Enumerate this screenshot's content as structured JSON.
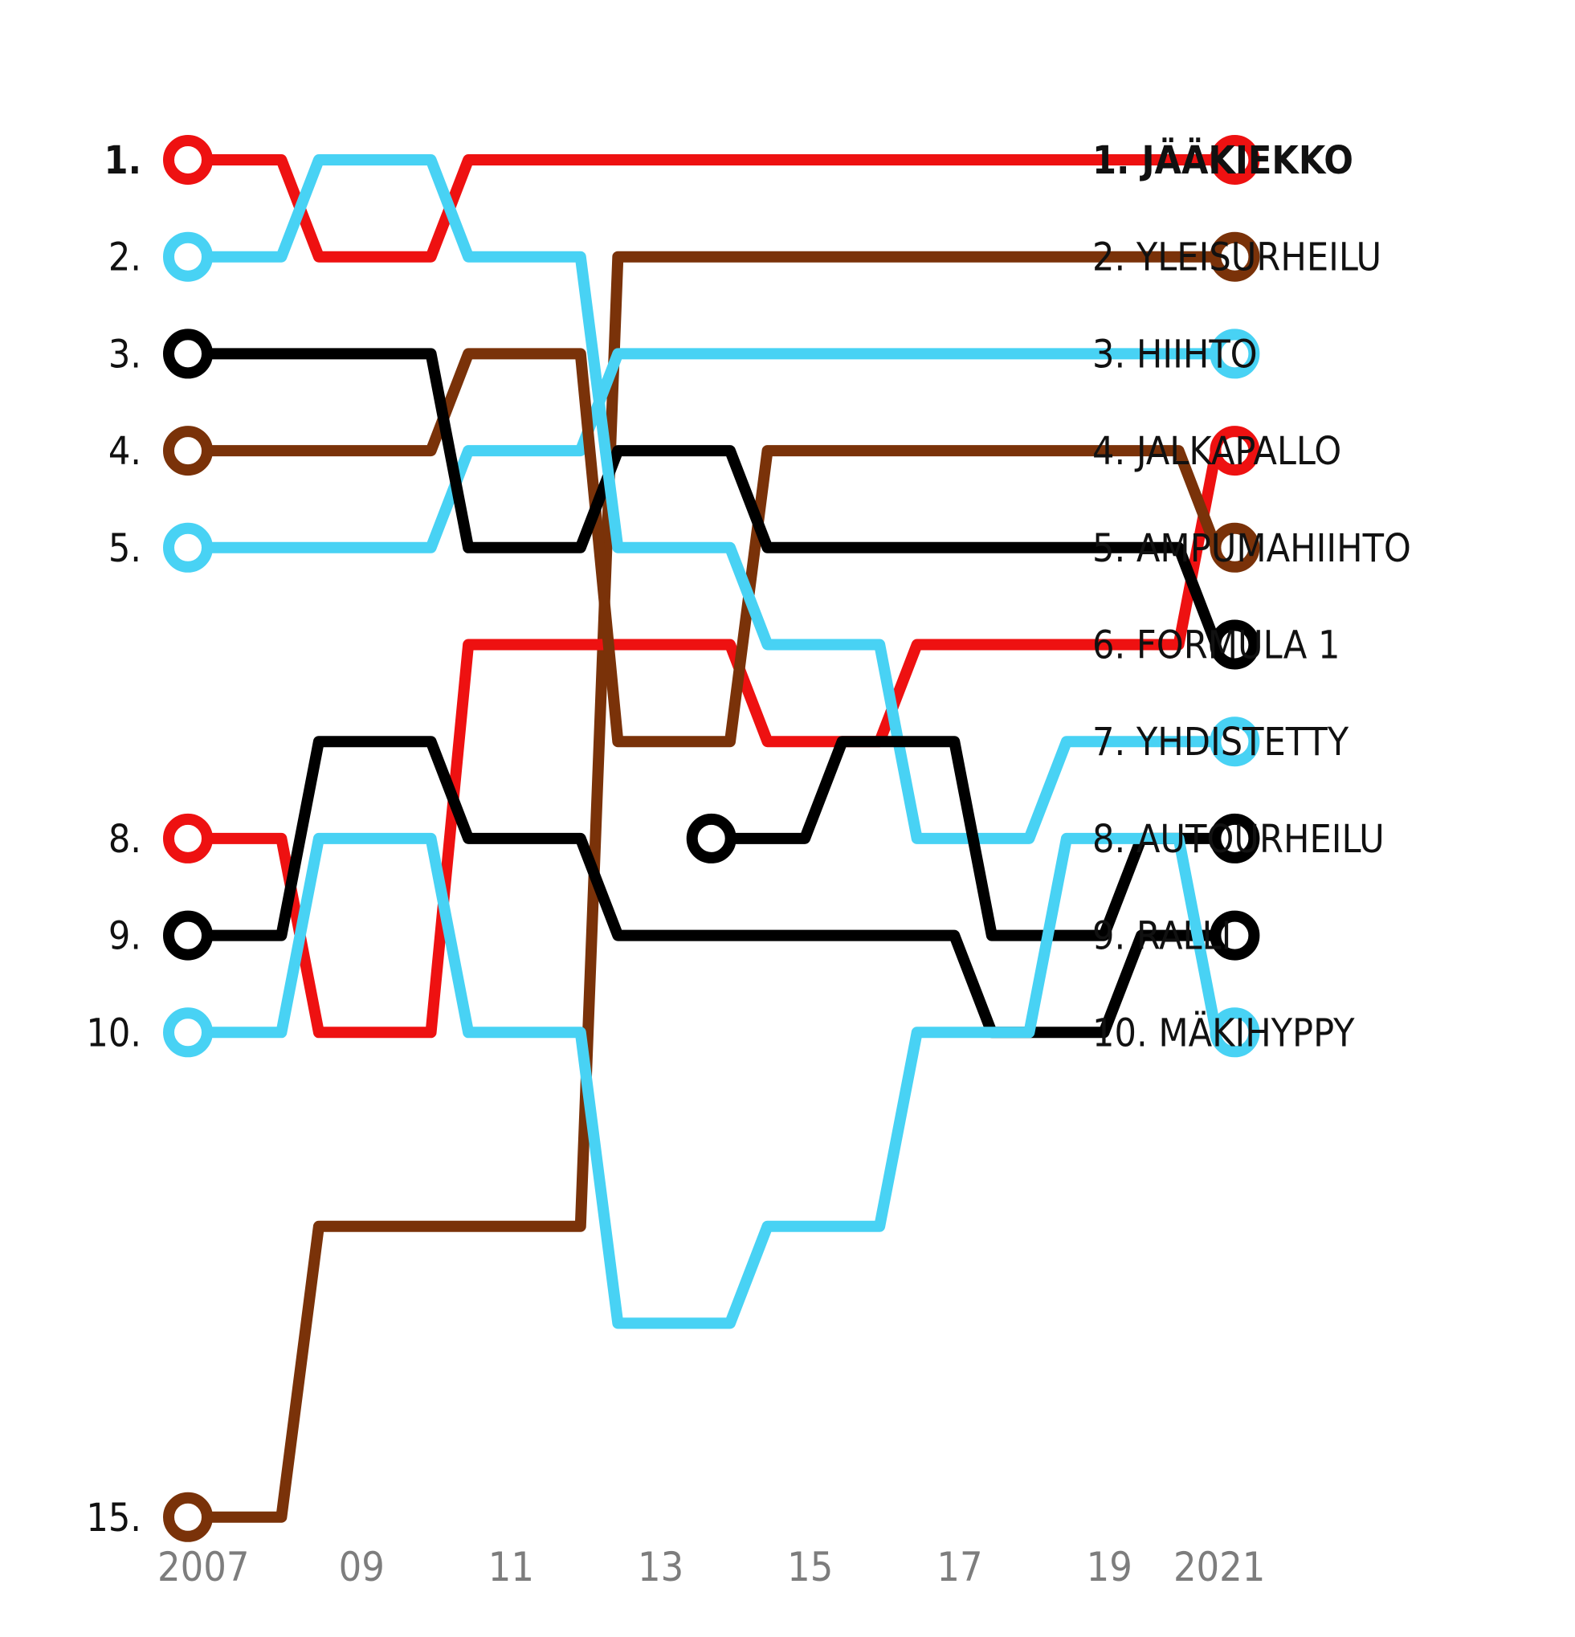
{
  "chart_data": {
    "type": "line",
    "title": "",
    "xlabel": "",
    "ylabel": "",
    "x_tick_labels": [
      "2007",
      "09",
      "11",
      "13",
      "15",
      "17",
      "19",
      "2021"
    ],
    "x": [
      2007,
      2008,
      2009,
      2010,
      2011,
      2012,
      2013,
      2014,
      2015,
      2016,
      2017,
      2018,
      2019,
      2020,
      2021
    ],
    "y_axis": "rank (1 = top)",
    "left_rank_labels": [
      {
        "rank": 1,
        "text": "1.",
        "bold": true
      },
      {
        "rank": 2,
        "text": "2."
      },
      {
        "rank": 3,
        "text": "3."
      },
      {
        "rank": 4,
        "text": "4."
      },
      {
        "rank": 5,
        "text": "5."
      },
      {
        "rank": 8,
        "text": "8."
      },
      {
        "rank": 9,
        "text": "9."
      },
      {
        "rank": 10,
        "text": "10."
      },
      {
        "rank": 15,
        "text": "15."
      }
    ],
    "series": [
      {
        "name": "JÄÄKIEKKO",
        "end_label": "1. JÄÄKIEKKO",
        "bold": true,
        "color": "#ee1111",
        "values": [
          1,
          1,
          2,
          2,
          1,
          1,
          1,
          1,
          1,
          1,
          1,
          1,
          1,
          1,
          1
        ]
      },
      {
        "name": "YLEISURHEILU",
        "end_label": "2. YLEISURHEILU",
        "color": "#7a3209",
        "values": [
          15,
          15,
          12,
          12,
          12,
          12,
          2,
          2,
          2,
          2,
          2,
          2,
          2,
          2,
          2
        ]
      },
      {
        "name": "HIIHTO",
        "end_label": "3. HIIHTO",
        "color": "#48d2f4",
        "values": [
          5,
          5,
          5,
          5,
          4,
          4,
          3,
          3,
          3,
          3,
          3,
          3,
          3,
          3,
          3
        ]
      },
      {
        "name": "JALKAPALLO",
        "end_label": "4. JALKAPALLO",
        "color": "#ee1111",
        "values": [
          8,
          8,
          10,
          10,
          6,
          6,
          6,
          6,
          7,
          7,
          6,
          6,
          6,
          6,
          4
        ]
      },
      {
        "name": "AMPUMAHIIHTO",
        "end_label": "5. AMPUMAHIIHTO",
        "color": "#7a3209",
        "values": [
          4,
          4,
          4,
          4,
          3,
          3,
          7,
          7,
          4,
          4,
          4,
          4,
          4,
          4,
          5
        ]
      },
      {
        "name": "FORMULA 1",
        "end_label": "6. FORMULA 1",
        "color": "#000000",
        "values": [
          3,
          3,
          3,
          3,
          5,
          5,
          4,
          4,
          5,
          5,
          5,
          5,
          5,
          5,
          6
        ]
      },
      {
        "name": "YHDISTETTY",
        "end_label": "7. YHDISTETTY",
        "color": "#48d2f4",
        "values": [
          2,
          2,
          1,
          1,
          2,
          2,
          5,
          5,
          6,
          6,
          8,
          8,
          7,
          7,
          7
        ]
      },
      {
        "name": "AUTOURHEILU",
        "end_label": "8. AUTOURHEILU",
        "color": "#000000",
        "values": [
          null,
          null,
          null,
          null,
          null,
          null,
          null,
          8,
          8,
          7,
          7,
          9,
          9,
          8,
          8
        ]
      },
      {
        "name": "RALLI",
        "end_label": "9. RALLI",
        "color": "#000000",
        "values": [
          9,
          9,
          7,
          7,
          8,
          8,
          9,
          9,
          9,
          9,
          9,
          10,
          10,
          9,
          9
        ]
      },
      {
        "name": "MÄKIHYPPY",
        "end_label": "10. MÄKIHYPPY",
        "color": "#48d2f4",
        "values": [
          10,
          10,
          8,
          8,
          10,
          10,
          13,
          13,
          12,
          12,
          10,
          10,
          8,
          8,
          10
        ]
      }
    ],
    "grid": false,
    "legend": "none (series labelled at right end)",
    "colors": {
      "red": "#ee1111",
      "brown": "#7a3209",
      "cyan": "#48d2f4",
      "black": "#000000",
      "tick_text": "#7d7d7d",
      "label_text": "#111111"
    }
  }
}
